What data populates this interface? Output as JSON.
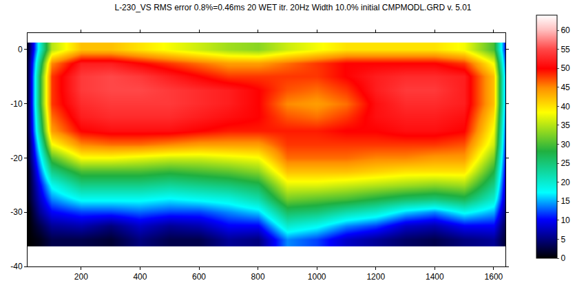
{
  "chart_data": {
    "type": "heatmap",
    "title": "L-230_VS RMS error 0.8%=0.46ms 20 WET itr. 20Hz Width 10.0% initial CMPMODL.GRD v. 5.01",
    "x": [
      20,
      60,
      100,
      200,
      300,
      400,
      500,
      600,
      700,
      800,
      900,
      1000,
      1100,
      1200,
      1300,
      1400,
      1500,
      1600,
      1640
    ],
    "y": [
      0,
      -2.5,
      -5,
      -7.5,
      -10,
      -12.5,
      -15,
      -17.5,
      -20,
      -22.5,
      -25,
      -27.5,
      -30,
      -32.5,
      -35
    ],
    "cells": [
      [
        2,
        20,
        35,
        42,
        42,
        40,
        38,
        36,
        34,
        33,
        36,
        38,
        40,
        40,
        40,
        40,
        38,
        30,
        10
      ],
      [
        3,
        25,
        45,
        52,
        52,
        50,
        48,
        46,
        44,
        44,
        46,
        48,
        50,
        50,
        50,
        50,
        48,
        38,
        12
      ],
      [
        3,
        28,
        48,
        54,
        55,
        54,
        52,
        50,
        48,
        48,
        48,
        48,
        50,
        52,
        53,
        53,
        52,
        42,
        14
      ],
      [
        3,
        28,
        48,
        54,
        55,
        55,
        54,
        53,
        52,
        50,
        47,
        46,
        48,
        52,
        54,
        54,
        52,
        42,
        14
      ],
      [
        3,
        28,
        48,
        53,
        54,
        54,
        54,
        53,
        52,
        50,
        45,
        44,
        46,
        51,
        53,
        53,
        52,
        42,
        14
      ],
      [
        3,
        26,
        46,
        52,
        53,
        53,
        53,
        52,
        51,
        50,
        47,
        46,
        48,
        51,
        52,
        52,
        51,
        40,
        13
      ],
      [
        3,
        24,
        44,
        50,
        51,
        51,
        51,
        50,
        49,
        49,
        49,
        49,
        50,
        50,
        51,
        51,
        50,
        38,
        12
      ],
      [
        2,
        20,
        38,
        45,
        46,
        46,
        45,
        44,
        44,
        44,
        48,
        48,
        48,
        48,
        48,
        48,
        47,
        36,
        11
      ],
      [
        2,
        16,
        30,
        38,
        38,
        37,
        36,
        36,
        37,
        38,
        46,
        46,
        46,
        45,
        45,
        44,
        44,
        32,
        10
      ],
      [
        1,
        13,
        24,
        30,
        30,
        30,
        29,
        30,
        31,
        33,
        42,
        42,
        42,
        41,
        40,
        40,
        40,
        28,
        9
      ],
      [
        1,
        10,
        18,
        24,
        24,
        24,
        23,
        24,
        25,
        27,
        37,
        37,
        36,
        35,
        34,
        33,
        34,
        24,
        8
      ],
      [
        1,
        8,
        14,
        18,
        18,
        18,
        17,
        18,
        19,
        22,
        32,
        31,
        30,
        28,
        26,
        25,
        27,
        20,
        7
      ],
      [
        0,
        6,
        10,
        12,
        12,
        13,
        12,
        12,
        14,
        16,
        26,
        25,
        22,
        20,
        16,
        14,
        18,
        15,
        5
      ],
      [
        0,
        3,
        6,
        7,
        5,
        8,
        6,
        7,
        10,
        10,
        20,
        18,
        14,
        12,
        8,
        7,
        10,
        10,
        3
      ],
      [
        0,
        1,
        3,
        3,
        2,
        5,
        3,
        3,
        6,
        5,
        14,
        12,
        8,
        6,
        4,
        3,
        5,
        6,
        2
      ]
    ],
    "xlim": [
      18,
      1640
    ],
    "xticks": [
      200,
      400,
      600,
      800,
      1000,
      1200,
      1400,
      1600
    ],
    "ylim": [
      -40,
      3
    ],
    "yticks": [
      0,
      -10,
      -20,
      -30,
      -40
    ],
    "zlim": [
      0,
      64
    ],
    "zticks": [
      0,
      5,
      10,
      15,
      20,
      25,
      30,
      35,
      40,
      45,
      50,
      55,
      60
    ],
    "grid": false
  }
}
